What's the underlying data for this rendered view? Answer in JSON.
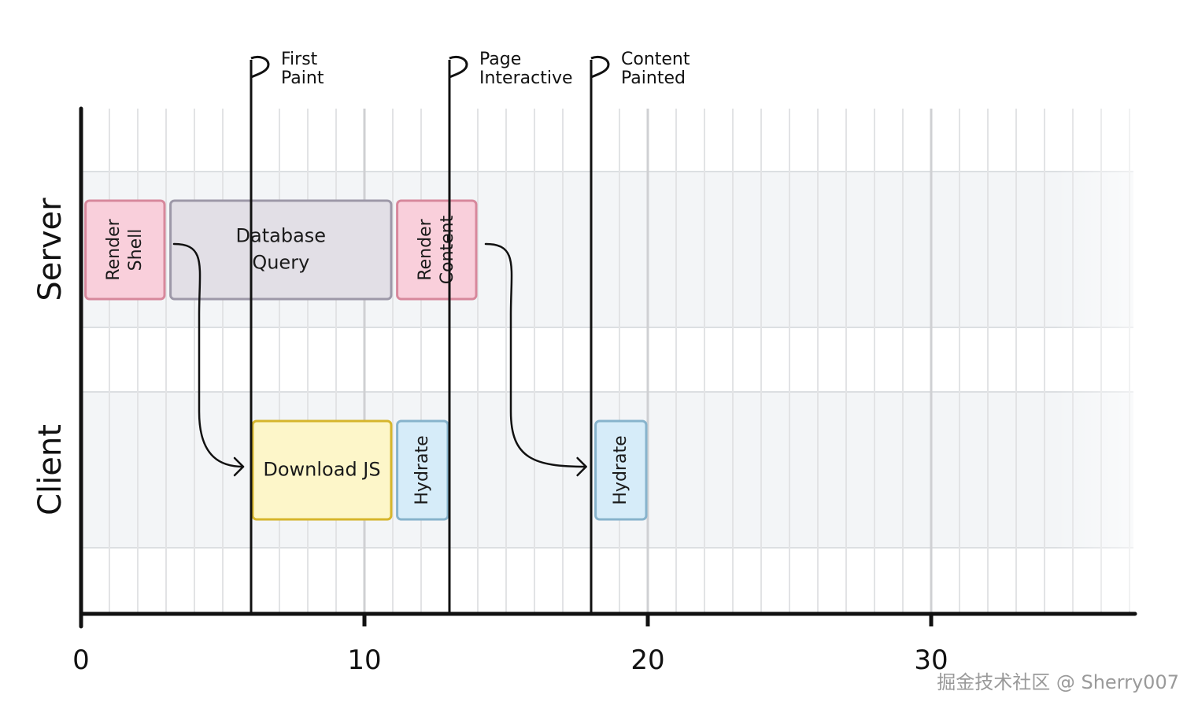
{
  "timeline": {
    "axis": {
      "min": 0,
      "max": 37,
      "minor_step": 1,
      "major_ticks": [
        0,
        10,
        20,
        30
      ]
    },
    "tick_labels": [
      "0",
      "10",
      "20",
      "30"
    ],
    "lanes": [
      {
        "id": "server",
        "label": "Server"
      },
      {
        "id": "client",
        "label": "Client"
      }
    ],
    "segments": [
      {
        "lane": "server",
        "start": 0.1,
        "end": 3.0,
        "lines": [
          "Render",
          "Shell"
        ],
        "rotated": true,
        "fill": "#f9cfdb",
        "stroke": "#d7889c"
      },
      {
        "lane": "server",
        "start": 3.1,
        "end": 11.0,
        "lines": [
          "Database",
          "Query"
        ],
        "rotated": false,
        "fill": "#e2dfe6",
        "stroke": "#9d98a8"
      },
      {
        "lane": "server",
        "start": 11.1,
        "end": 14.0,
        "lines": [
          "Render",
          "Content"
        ],
        "rotated": true,
        "fill": "#f9cfdb",
        "stroke": "#d7889c"
      },
      {
        "lane": "client",
        "start": 6.0,
        "end": 11.0,
        "lines": [
          "Download JS"
        ],
        "rotated": false,
        "fill": "#fdf6c9",
        "stroke": "#d6b52c"
      },
      {
        "lane": "client",
        "start": 11.1,
        "end": 13.0,
        "lines": [
          "Hydrate"
        ],
        "rotated": true,
        "fill": "#d6ecf9",
        "stroke": "#87b3cc"
      },
      {
        "lane": "client",
        "start": 18.1,
        "end": 20.0,
        "lines": [
          "Hydrate"
        ],
        "rotated": true,
        "fill": "#d6ecf9",
        "stroke": "#87b3cc"
      }
    ],
    "markers": [
      {
        "at": 6,
        "lines": [
          "First",
          "Paint"
        ]
      },
      {
        "at": 13,
        "lines": [
          "Page",
          "Interactive"
        ]
      },
      {
        "at": 18,
        "lines": [
          "Content",
          "Painted"
        ]
      }
    ],
    "arrows": [
      {
        "from_segment": 0,
        "to_segment": 3
      },
      {
        "from_segment": 2,
        "to_segment": 5
      }
    ]
  },
  "watermark": "掘金技术社区 @ Sherry007",
  "colors": {
    "lane_bg": "#f3f5f7",
    "grid_minor": "#e2e3e5",
    "grid_major": "#cfd0d3",
    "axis": "#111111"
  }
}
